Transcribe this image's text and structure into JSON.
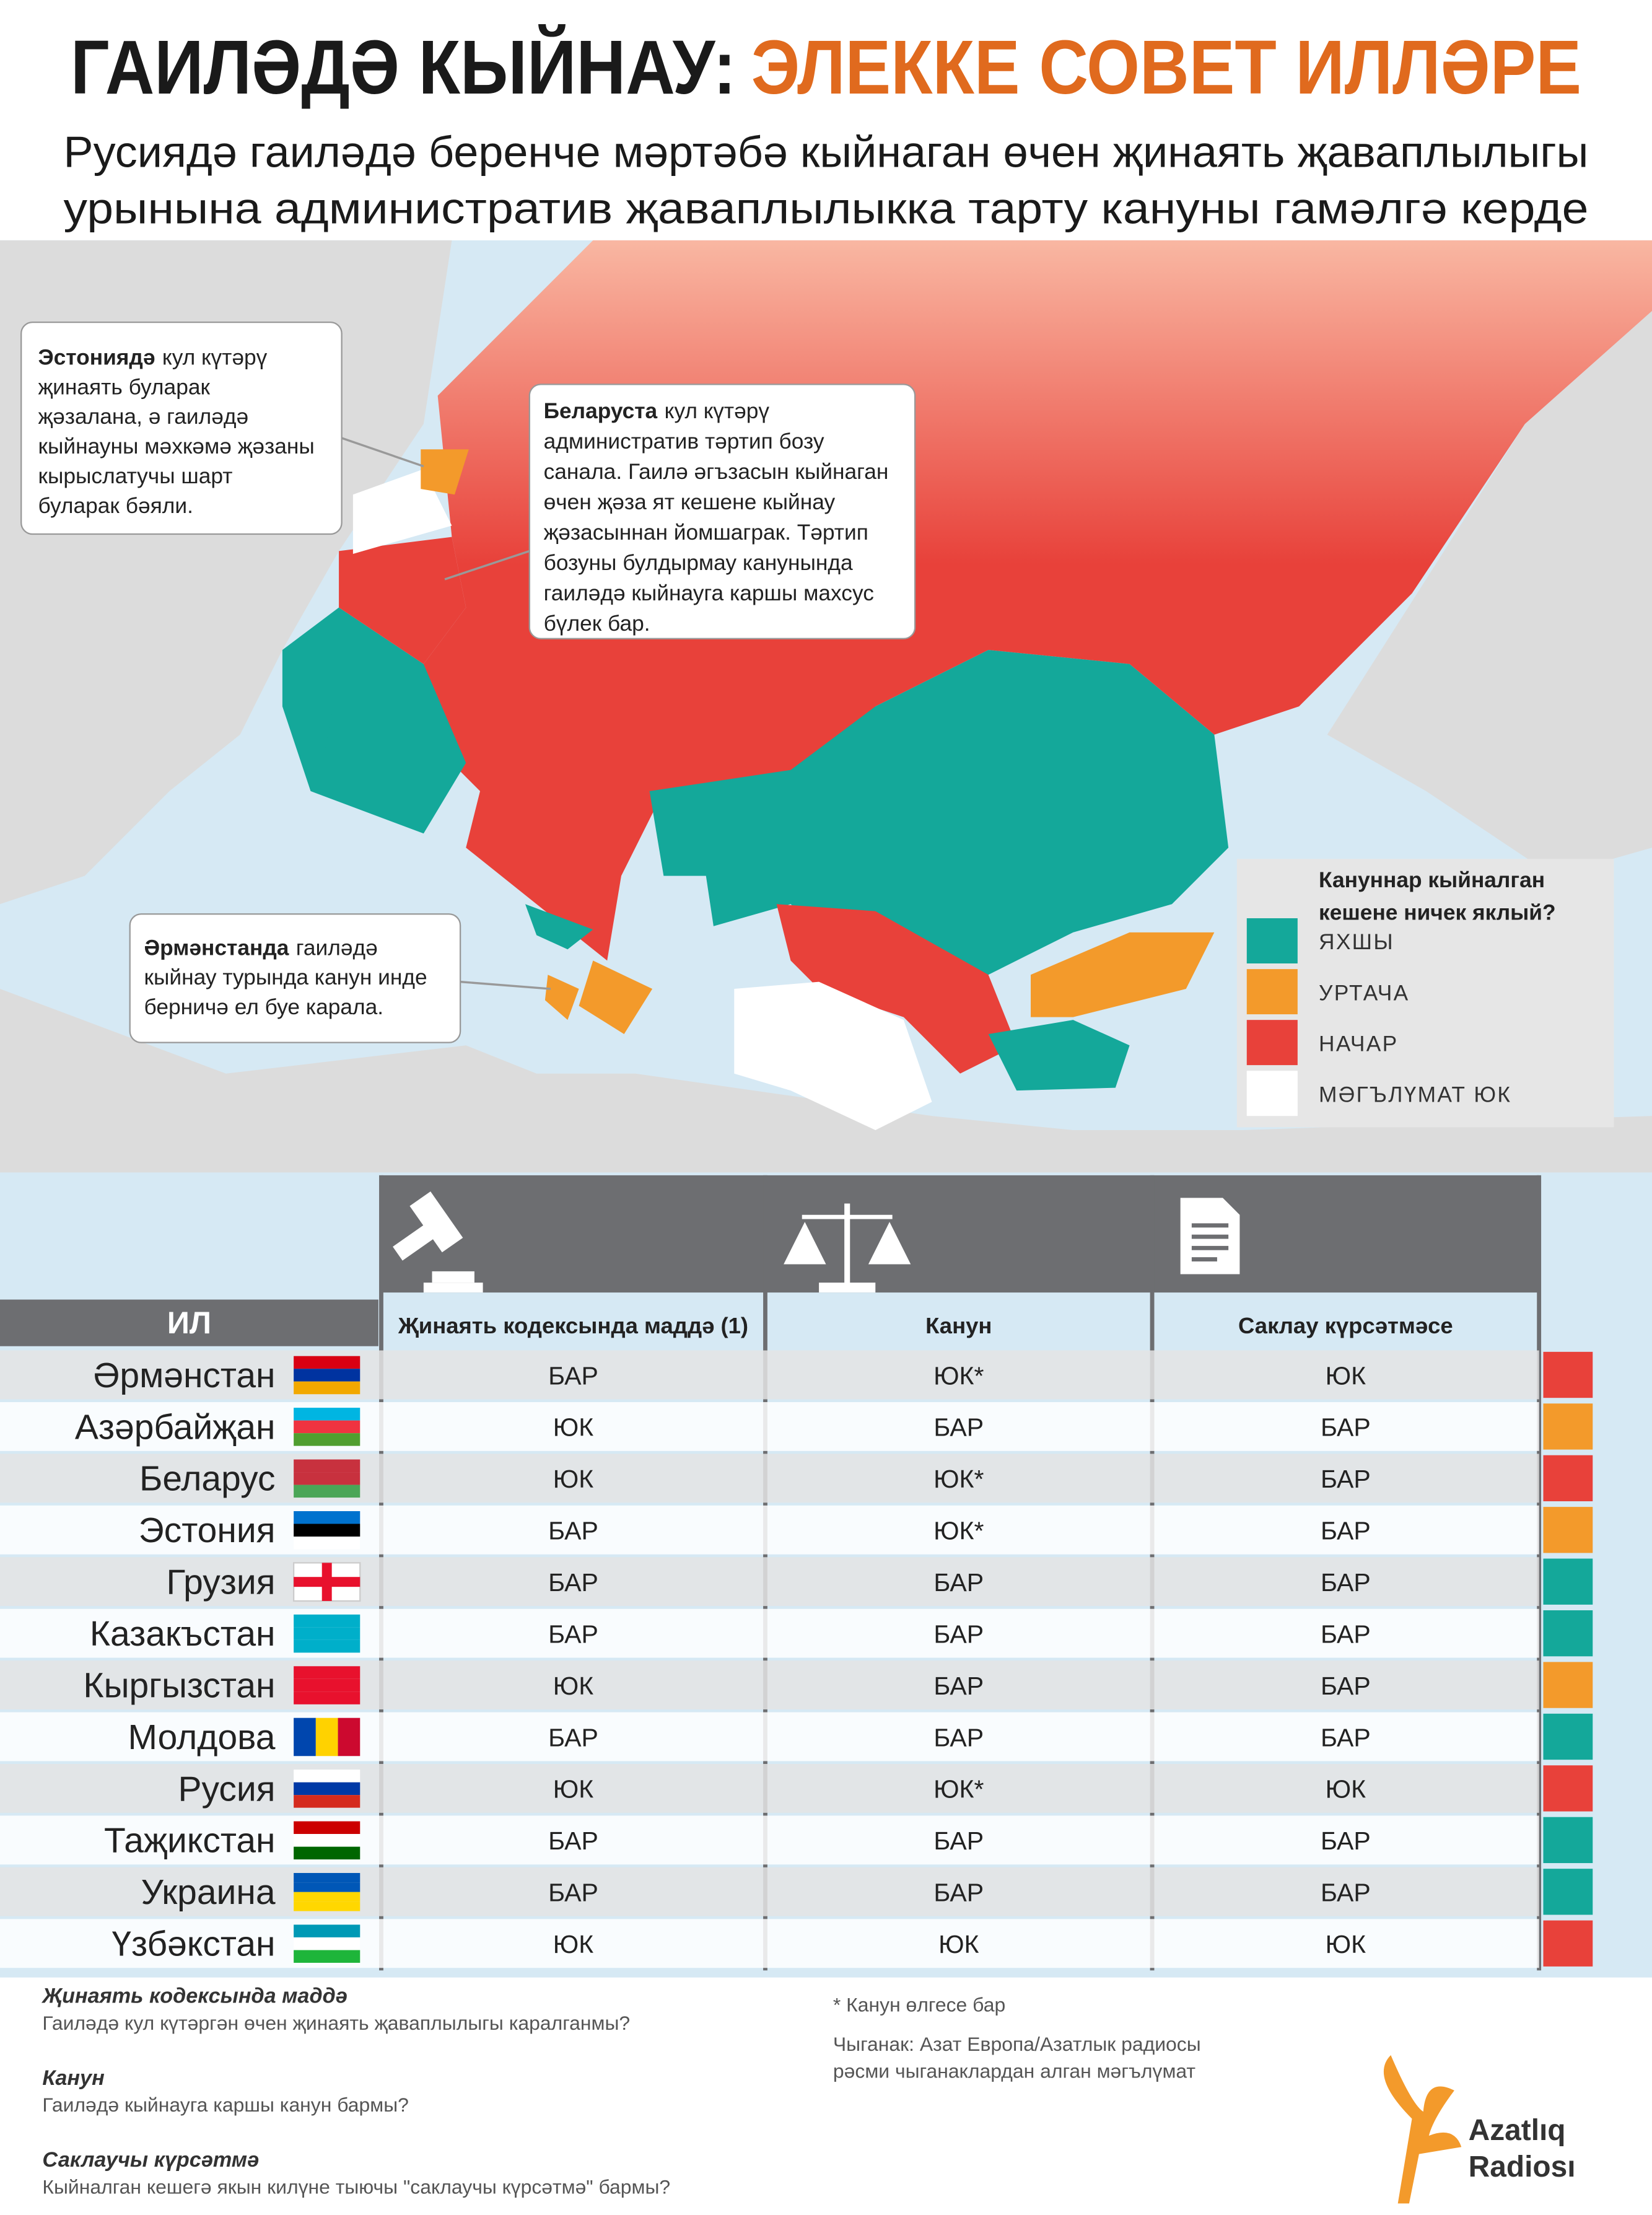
{
  "header": {
    "title_black": "ГАИЛӘДӘ КЫЙНАУ:",
    "title_orange": "ЭЛЕККЕ СОВЕТ ИЛЛӘРЕ",
    "subtitle": [
      "Русиядә гаиләдә беренче мәртәбә кыйнаган өчен җинаять җаваплылыгы",
      "урынына административ җаваплылыкка тарту кануны гамәлгә керде"
    ]
  },
  "callouts": [
    {
      "bold": "Эстониядә",
      "lines": [
        "кул күтәрү",
        "җинаять буларак",
        "җәзалана, ә гаиләдә",
        "кыйнауны мәхкәмә җәзаны",
        "кырыслатучы шарт",
        "буларак бәяли."
      ]
    },
    {
      "bold": "Беларуста",
      "lines": [
        "кул күтәрү",
        "административ тәртип бозу",
        "санала. Гаилә әгъзасын кыйнаган",
        "өчен җәза ят кешене кыйнау",
        "җәзасыннан йомшаграк. Тәртип",
        "бозуны булдырмау канунында",
        "гаиләдә кыйнауга каршы махсус",
        "бүлек бар."
      ]
    },
    {
      "bold": "Әрмәнстанда",
      "lines": [
        "гаиләдә",
        "кыйнау турында канун инде",
        "берничә ел буе карала."
      ]
    }
  ],
  "legend": {
    "title": [
      "Кануннар кыйналган",
      "кешене ничек яклый?"
    ],
    "items": [
      {
        "label": "ЯХШЫ",
        "color": "#14a89a"
      },
      {
        "label": "УРТАЧА",
        "color": "#f39a2b"
      },
      {
        "label": "НАЧАР",
        "color": "#e8413a"
      },
      {
        "label": "МӘГЪЛҮМАТ ЮК",
        "color": "#ffffff"
      }
    ]
  },
  "table": {
    "columns": [
      "ИЛ",
      "Җинаять кодексында маддә (1)",
      "Канун",
      "Саклау күрсәтмәсе"
    ],
    "rows": [
      {
        "country": "Әрмәнстан",
        "cells": [
          "БАР",
          "ЮК*",
          "ЮК"
        ],
        "color": "#e8413a"
      },
      {
        "country": "Азәрбайҗан",
        "cells": [
          "ЮК",
          "БАР",
          "БАР"
        ],
        "color": "#f39a2b"
      },
      {
        "country": "Беларус",
        "cells": [
          "ЮК",
          "ЮК*",
          "БАР"
        ],
        "color": "#e8413a"
      },
      {
        "country": "Эстония",
        "cells": [
          "БАР",
          "ЮК*",
          "БАР"
        ],
        "color": "#f39a2b"
      },
      {
        "country": "Грузия",
        "cells": [
          "БАР",
          "БАР",
          "БАР"
        ],
        "color": "#14a89a"
      },
      {
        "country": "Казакъстан",
        "cells": [
          "БАР",
          "БАР",
          "БАР"
        ],
        "color": "#14a89a"
      },
      {
        "country": "Кыргызстан",
        "cells": [
          "ЮК",
          "БАР",
          "БАР"
        ],
        "color": "#f39a2b"
      },
      {
        "country": "Молдова",
        "cells": [
          "БАР",
          "БАР",
          "БАР"
        ],
        "color": "#14a89a"
      },
      {
        "country": "Русия",
        "cells": [
          "ЮК",
          "ЮК*",
          "ЮК"
        ],
        "color": "#e8413a"
      },
      {
        "country": "Таҗикстан",
        "cells": [
          "БАР",
          "БАР",
          "БАР"
        ],
        "color": "#14a89a"
      },
      {
        "country": "Украина",
        "cells": [
          "БАР",
          "БАР",
          "БАР"
        ],
        "color": "#14a89a"
      },
      {
        "country": "Үзбәкстан",
        "cells": [
          "ЮК",
          "ЮК",
          "ЮК"
        ],
        "color": "#e8413a"
      }
    ]
  },
  "notes": [
    {
      "term": "Җинаять кодексында маддә",
      "text": "Гаиләдә кул күтәргән өчен җинаять җаваплылыгы каралганмы?"
    },
    {
      "term": "Канун",
      "text": "Гаиләдә кыйнауга каршы канун бармы?"
    },
    {
      "term": "Саклаучы күрсәтмә",
      "text": "Кыйналган кешегә якын килүне тыючы \"саклаучы күрсәтмә\" бармы?"
    }
  ],
  "footnote": "* Канун өлгесе бар",
  "source": [
    "Чыганак: Азат Европа/Азатлык радиосы",
    "рәсми чыганаклардан алган мәгълүмат"
  ],
  "logo": [
    "Azatlıq",
    "Radiosı"
  ]
}
